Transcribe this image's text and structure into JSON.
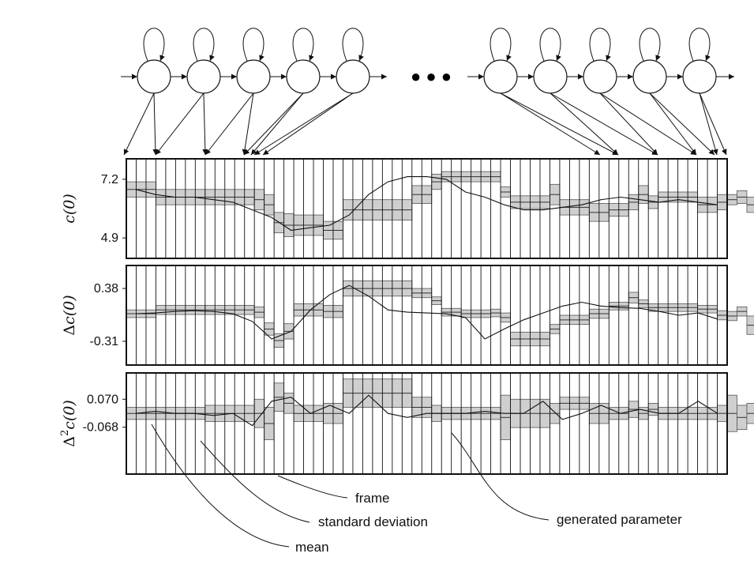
{
  "hmm": {
    "left_states": 5,
    "right_states": 5,
    "ellipsis": "● ● ●"
  },
  "panels": [
    {
      "id": "c0",
      "ylabel_base": "c(0)",
      "ylabel_prefix": "",
      "ylabel_sup": "",
      "ticks": [
        {
          "label": "7.2",
          "value": 7.2
        },
        {
          "label": "4.9",
          "value": 4.9
        }
      ],
      "ylim": [
        4.1,
        8.0
      ]
    },
    {
      "id": "dc0",
      "ylabel_base": "c(0)",
      "ylabel_prefix": "Δ",
      "ylabel_sup": "",
      "ticks": [
        {
          "label": "0.38",
          "value": 0.38
        },
        {
          "label": "-0.31",
          "value": -0.31
        }
      ],
      "ylim": [
        -0.62,
        0.68
      ]
    },
    {
      "id": "ddc0",
      "ylabel_base": "c(0)",
      "ylabel_prefix": "Δ",
      "ylabel_sup": "2",
      "ticks": [
        {
          "label": "0.070",
          "value": 0.07
        },
        {
          "label": "-0.068",
          "value": -0.068
        }
      ],
      "ylim": [
        -0.3,
        0.2
      ]
    }
  ],
  "annotations": {
    "frame": "frame",
    "standard_deviation": "standard deviation",
    "mean": "mean",
    "generated_parameter": "generated parameter"
  },
  "chart_data": {
    "type": "line",
    "frames": 61,
    "state_frame_spans": [
      3,
      5,
      5,
      1,
      1,
      1,
      1,
      3,
      2,
      7,
      2,
      1,
      2,
      3,
      1,
      1,
      4,
      1,
      3,
      2,
      2,
      1,
      1,
      1,
      4,
      2,
      1,
      1,
      1,
      1
    ],
    "series": [
      {
        "panel": "c(0)",
        "mean": [
          6.8,
          6.5,
          6.5,
          6.4,
          6.2,
          5.5,
          5.4,
          5.4,
          5.2,
          6.0,
          6.6,
          7.1,
          7.3,
          7.3,
          7.3,
          6.7,
          6.3,
          6.6,
          6.1,
          5.9,
          6.0,
          6.3,
          6.6,
          6.3,
          6.5,
          6.2,
          6.3,
          6.4,
          6.5,
          6.2
        ],
        "std": [
          0.3,
          0.3,
          0.3,
          0.4,
          0.4,
          0.4,
          0.45,
          0.4,
          0.35,
          0.4,
          0.35,
          0.3,
          0.2,
          0.2,
          0.2,
          0.2,
          0.25,
          0.4,
          0.3,
          0.35,
          0.25,
          0.3,
          0.35,
          0.25,
          0.2,
          0.3,
          0.3,
          0.2,
          0.25,
          0.3
        ],
        "generated": [
          6.8,
          6.6,
          6.5,
          6.5,
          6.4,
          6.3,
          6.0,
          5.7,
          5.2,
          5.3,
          5.4,
          5.8,
          6.6,
          7.1,
          7.3,
          7.3,
          7.2,
          6.7,
          6.5,
          6.2,
          6.0,
          6.0,
          6.1,
          6.2,
          6.4,
          6.5,
          6.4,
          6.3,
          6.4,
          6.3,
          6.2
        ]
      },
      {
        "panel": "Δc(0)",
        "mean": [
          0.05,
          0.1,
          0.1,
          0.07,
          -0.15,
          -0.3,
          -0.18,
          0.1,
          0.08,
          0.38,
          0.32,
          0.22,
          0.07,
          0.05,
          0.06,
          0.0,
          -0.28,
          -0.15,
          -0.03,
          0.05,
          0.15,
          0.26,
          0.18,
          0.13,
          0.13,
          0.11,
          0.03,
          0.02,
          0.08,
          -0.1
        ],
        "std": [
          0.05,
          0.06,
          0.06,
          0.07,
          0.08,
          0.09,
          0.1,
          0.08,
          0.08,
          0.1,
          0.06,
          0.05,
          0.05,
          0.05,
          0.05,
          0.06,
          0.09,
          0.06,
          0.06,
          0.06,
          0.05,
          0.07,
          0.05,
          0.05,
          0.05,
          0.05,
          0.06,
          0.06,
          0.06,
          0.12
        ],
        "generated": [
          0.05,
          0.06,
          0.08,
          0.09,
          0.08,
          0.05,
          -0.05,
          -0.28,
          -0.18,
          0.1,
          0.3,
          0.42,
          0.28,
          0.1,
          0.07,
          0.06,
          0.05,
          0.0,
          -0.28,
          -0.15,
          -0.03,
          0.06,
          0.15,
          0.2,
          0.15,
          0.13,
          0.12,
          0.08,
          0.03,
          0.06,
          -0.02
        ]
      },
      {
        "panel": "Δ²c(0)",
        "mean": [
          0.0,
          0.0,
          0.0,
          0.0,
          -0.05,
          0.08,
          0.05,
          0.0,
          0.0,
          0.1,
          0.03,
          0.0,
          0.0,
          0.0,
          0.0,
          -0.02,
          0.0,
          0.0,
          0.05,
          0.0,
          0.0,
          0.02,
          0.0,
          0.02,
          0.0,
          0.0,
          0.0,
          0.0,
          -0.02,
          0.0
        ],
        "std": [
          0.03,
          0.03,
          0.04,
          0.07,
          0.08,
          0.07,
          0.05,
          0.04,
          0.05,
          0.07,
          0.05,
          0.04,
          0.03,
          0.03,
          0.03,
          0.11,
          0.07,
          0.05,
          0.03,
          0.05,
          0.03,
          0.04,
          0.03,
          0.03,
          0.03,
          0.03,
          0.04,
          0.09,
          0.06,
          0.05
        ],
        "generated": [
          0.0,
          0.01,
          0.0,
          0.0,
          -0.01,
          0.0,
          -0.06,
          0.06,
          0.08,
          0.0,
          0.04,
          0.0,
          0.09,
          0.0,
          -0.02,
          0.0,
          0.0,
          0.0,
          0.01,
          0.0,
          0.0,
          0.06,
          -0.03,
          0.0,
          0.04,
          0.0,
          0.02,
          0.0,
          0.0,
          0.06,
          0.0
        ]
      }
    ]
  }
}
